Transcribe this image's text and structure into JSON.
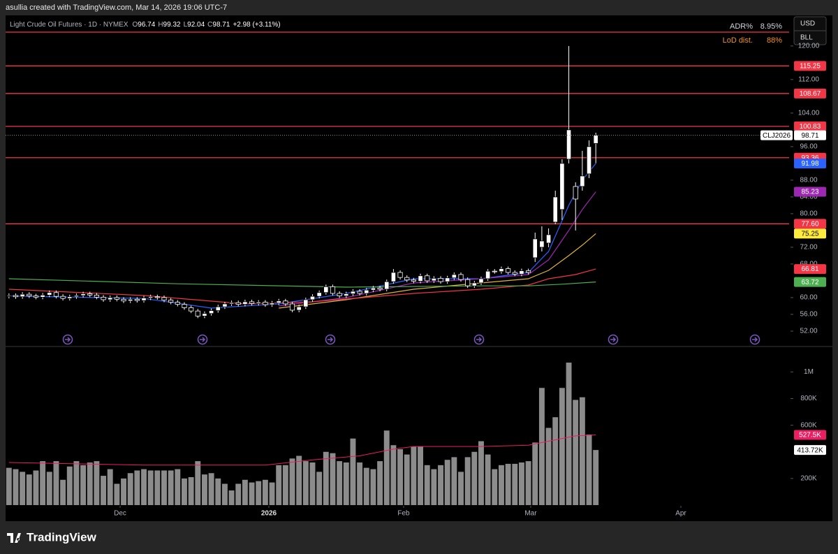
{
  "header": "asullia created with TradingView.com, Mar 14, 2026 19:06 UTC-7",
  "buttons": [
    "USD",
    "BLL"
  ],
  "brand": "TradingView",
  "chart_data": {
    "type": "candlestick",
    "title": "Light Crude Oil Futures · 1D · NYMEX",
    "legend_keys": [
      "O",
      "H",
      "L",
      "C"
    ],
    "change": "+2.98 (+3.11%)",
    "up_color": "#ffffff",
    "down_color": "#000000",
    "open": [
      60.3,
      60.5,
      60.2,
      60.8,
      60.4,
      60.1,
      60.6,
      61.2,
      60.3,
      59.8,
      60.2,
      60.5,
      60.9,
      60.6,
      60.1,
      59.5,
      60.0,
      59.6,
      59.2,
      59.6,
      59.3,
      59.9,
      60.2,
      60.0,
      59.4,
      58.9,
      58.4,
      57.6,
      56.8,
      55.6,
      56.2,
      56.9,
      57.8,
      58.5,
      58.8,
      58.4,
      59.0,
      58.6,
      58.9,
      58.3,
      58.7,
      59.2,
      58.5,
      57.0,
      57.8,
      59.5,
      60.3,
      61.2,
      62.6,
      61.0,
      60.4,
      60.9,
      61.5,
      61.0,
      61.8,
      62.3,
      62.0,
      63.8,
      66.0,
      64.8,
      64.2,
      63.9,
      65.2,
      64.0,
      64.6,
      63.8,
      64.7,
      65.5,
      64.3,
      62.8,
      63.5,
      64.5,
      66.3,
      66.2,
      66.9,
      66.0,
      65.6,
      66.4,
      69.5,
      72.0,
      73.0,
      78.0,
      81.0,
      93.0,
      86.5,
      86.5,
      89.5,
      96.74
    ],
    "high": [
      61.0,
      61.0,
      61.3,
      61.3,
      60.9,
      61.1,
      61.7,
      61.7,
      60.8,
      60.7,
      61.0,
      61.4,
      61.4,
      61.1,
      60.6,
      60.5,
      60.5,
      60.1,
      60.1,
      60.1,
      60.4,
      60.7,
      60.7,
      60.5,
      59.9,
      59.4,
      58.9,
      58.1,
      57.3,
      56.7,
      57.4,
      58.3,
      59.0,
      59.3,
      59.3,
      59.5,
      59.5,
      59.4,
      59.4,
      59.2,
      59.7,
      59.7,
      59.0,
      58.3,
      60.0,
      60.8,
      61.7,
      63.1,
      63.1,
      61.5,
      61.4,
      62.0,
      62.0,
      62.3,
      62.8,
      62.8,
      64.3,
      66.8,
      66.5,
      65.3,
      64.7,
      65.7,
      65.7,
      65.1,
      65.1,
      65.2,
      66.0,
      66.0,
      64.8,
      64.0,
      65.0,
      66.8,
      66.8,
      67.4,
      67.4,
      66.5,
      66.9,
      66.9,
      75.5,
      77,
      76.5,
      85.5,
      93,
      120,
      87.5,
      95,
      97.5,
      99.32
    ],
    "low": [
      59.8,
      59.7,
      59.7,
      59.9,
      59.6,
      59.6,
      60.1,
      59.8,
      59.3,
      59.3,
      59.7,
      60.0,
      60.1,
      59.6,
      59.0,
      59.0,
      59.1,
      58.7,
      58.7,
      58.8,
      58.8,
      59.4,
      59.5,
      58.9,
      58.4,
      57.9,
      57.1,
      56.3,
      55.1,
      55.1,
      55.7,
      56.4,
      57.3,
      58.0,
      57.9,
      57.9,
      58.1,
      58.1,
      57.8,
      57.8,
      58.2,
      58.0,
      56.5,
      56.5,
      57.3,
      59.0,
      59.8,
      60.7,
      60.5,
      59.9,
      59.9,
      60.4,
      60.5,
      60.5,
      61.3,
      61.5,
      61.5,
      63.3,
      64.3,
      63.7,
      63.4,
      63.4,
      63.5,
      63.5,
      63.3,
      63.3,
      64.2,
      63.8,
      62.3,
      62.3,
      63.0,
      64.0,
      65.7,
      65.7,
      65.5,
      65.1,
      65.1,
      65.5,
      68.5,
      71,
      72,
      77.5,
      78.5,
      92,
      76,
      85.5,
      88.5,
      92.04
    ],
    "close": [
      60.5,
      60.2,
      60.8,
      60.4,
      60.1,
      60.6,
      61.2,
      60.3,
      59.8,
      60.2,
      60.5,
      60.9,
      60.6,
      60.1,
      59.5,
      60.0,
      59.6,
      59.2,
      59.6,
      59.3,
      59.9,
      60.2,
      60.0,
      59.4,
      58.9,
      58.4,
      57.6,
      56.8,
      55.6,
      56.2,
      56.9,
      57.8,
      58.5,
      58.8,
      58.4,
      59.0,
      58.6,
      58.9,
      58.3,
      58.7,
      59.2,
      58.5,
      57.0,
      57.8,
      59.5,
      60.3,
      61.2,
      62.6,
      61.0,
      60.4,
      60.9,
      61.5,
      61.0,
      61.8,
      62.3,
      62.0,
      63.8,
      66.0,
      64.8,
      64.2,
      63.9,
      65.2,
      64.0,
      64.6,
      63.8,
      64.7,
      65.5,
      64.3,
      62.8,
      63.5,
      64.5,
      66.3,
      66.2,
      66.9,
      66.0,
      65.6,
      66.4,
      66.0,
      74.0,
      73.5,
      75.0,
      84.0,
      92.0,
      100.0,
      83.5,
      89.0,
      96.0,
      98.71
    ],
    "last_tag": "CLJ2026",
    "xlim": [
      -0.5,
      111
    ],
    "xticks": [
      {
        "value": 16.48,
        "label": "Dec"
      },
      {
        "value": 38.53,
        "label": "2026"
      },
      {
        "value": 58.51,
        "label": "Feb"
      },
      {
        "value": 77.35,
        "label": "Mar"
      },
      {
        "value": 99.61,
        "label": "Apr"
      }
    ],
    "ylim": [
      48.5,
      127.3
    ],
    "yticks": [
      {
        "value": 52,
        "label": "52.00"
      },
      {
        "value": 56,
        "label": "56.00"
      },
      {
        "value": 60,
        "label": "60.00"
      },
      {
        "value": 68,
        "label": "68.00"
      },
      {
        "value": 72,
        "label": "72.00"
      },
      {
        "value": 80,
        "label": "80.00"
      },
      {
        "value": 84,
        "label": "84.00"
      },
      {
        "value": 88,
        "label": "88.00"
      },
      {
        "value": 96,
        "label": "96.00"
      },
      {
        "value": 104,
        "label": "104.00"
      },
      {
        "value": 112,
        "label": "112.00"
      },
      {
        "value": 120,
        "label": "120.00"
      }
    ],
    "hline_color": "#f23645",
    "hlines": [
      {
        "value": 123.3,
        "label": null
      },
      {
        "value": 115.25,
        "label": "115.25"
      },
      {
        "value": 108.67,
        "label": "108.67"
      },
      {
        "value": 100.83,
        "label": "100.83"
      },
      {
        "value": 93.36,
        "label": "93.36"
      },
      {
        "value": 77.6,
        "label": "77.60"
      }
    ],
    "ma_series": [
      {
        "color": "#2962ff",
        "x": [
          0,
          20,
          30,
          40,
          50,
          60,
          70,
          77,
          80,
          83,
          85,
          87
        ],
        "values": [
          60.4,
          59.8,
          57.5,
          58.5,
          61,
          64.5,
          64.5,
          66,
          71,
          82,
          88,
          91.98
        ]
      },
      {
        "color": "#9c27b0",
        "x": [
          40,
          50,
          60,
          70,
          77,
          80,
          83,
          85,
          87
        ],
        "values": [
          58.0,
          60,
          63.5,
          64.5,
          65.5,
          69,
          76,
          81,
          85.23
        ]
      },
      {
        "color": "#e0b43a",
        "x": [
          40,
          50,
          60,
          70,
          77,
          80,
          83,
          85,
          87
        ],
        "values": [
          57.5,
          59.5,
          62,
          63.5,
          64.5,
          66.5,
          70,
          72.5,
          75.25
        ]
      },
      {
        "color": "#f23645",
        "x": [
          0,
          20,
          35,
          45,
          60,
          70,
          77,
          80,
          84,
          87
        ],
        "values": [
          62.0,
          60.5,
          58.5,
          59,
          61,
          62,
          63,
          64.5,
          65.5,
          66.81
        ]
      },
      {
        "color": "#4caf50",
        "x": [
          0,
          25,
          50,
          70,
          77,
          82,
          87
        ],
        "values": [
          64.5,
          63.3,
          62.5,
          62.8,
          62.8,
          63.2,
          63.72
        ]
      }
    ],
    "volume": {
      "color": "#8c8c8c",
      "values": [
        280000,
        270000,
        250000,
        230000,
        260000,
        330000,
        250000,
        330000,
        190000,
        290000,
        330000,
        300000,
        320000,
        330000,
        220000,
        270000,
        160000,
        200000,
        240000,
        260000,
        270000,
        260000,
        260000,
        260000,
        260000,
        270000,
        200000,
        210000,
        330000,
        230000,
        240000,
        200000,
        160000,
        110000,
        160000,
        190000,
        170000,
        180000,
        190000,
        170000,
        300000,
        300000,
        350000,
        370000,
        330000,
        320000,
        250000,
        400000,
        390000,
        330000,
        320000,
        500000,
        320000,
        280000,
        270000,
        330000,
        560000,
        450000,
        420000,
        380000,
        440000,
        440000,
        300000,
        270000,
        300000,
        340000,
        360000,
        250000,
        360000,
        400000,
        480000,
        380000,
        270000,
        300000,
        310000,
        310000,
        320000,
        330000,
        470000,
        880000,
        580000,
        660000,
        880000,
        1070000,
        790000,
        810000,
        530000,
        413720
      ],
      "last_label": "413.72K",
      "ylim": [
        0,
        1170000
      ],
      "yticks": [
        {
          "value": 200000,
          "label": "200K"
        },
        {
          "value": 600000,
          "label": "600K"
        },
        {
          "value": 800000,
          "label": "800K"
        },
        {
          "value": 1000000,
          "label": "1M"
        }
      ],
      "ma": {
        "color": "#e91e63",
        "x": [
          0,
          20,
          38,
          45,
          52,
          57,
          60,
          70,
          77,
          80,
          84,
          87
        ],
        "values": [
          320000,
          300000,
          300000,
          340000,
          370000,
          420000,
          440000,
          440000,
          450000,
          480000,
          520000,
          527500
        ],
        "last_label": "527.5K"
      }
    },
    "stats": [
      {
        "label": "ADR%",
        "value": "8.95%",
        "color": "#d1d4dc"
      },
      {
        "label": "LoD dist.",
        "value": "88%",
        "color": "#f7931a"
      }
    ]
  }
}
